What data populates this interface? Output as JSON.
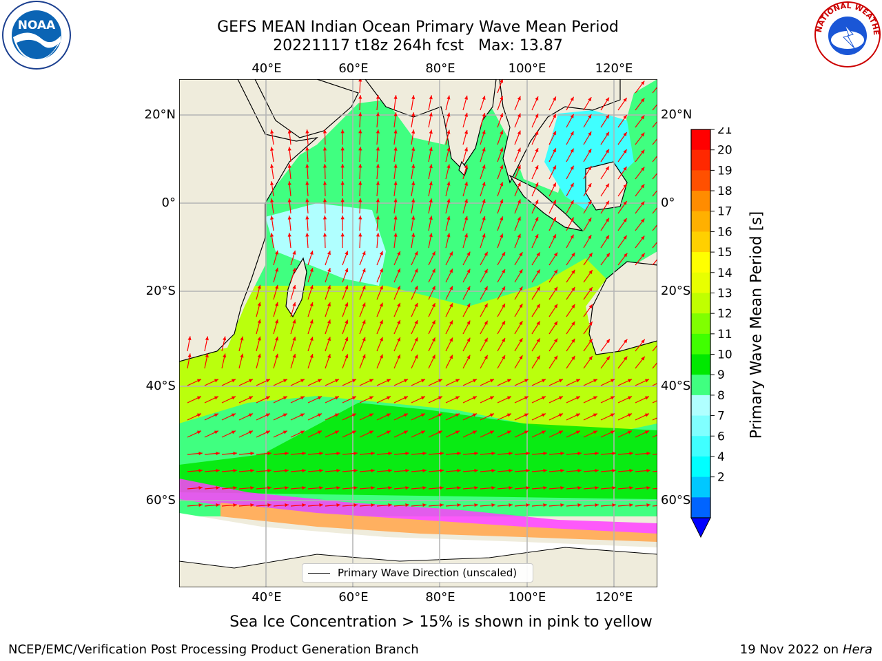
{
  "title_line1": "GEFS MEAN Indian Ocean Primary Wave Mean Period",
  "title_line2": "20221117 t18z 264h fcst   Max: 13.87",
  "logos": {
    "left": "NOAA",
    "right": "NATIONAL WEATHER SERVICE"
  },
  "map": {
    "lon_range": [
      20,
      130
    ],
    "lat_range": [
      -68,
      28
    ],
    "top_labels": [
      "40°E",
      "60°E",
      "80°E",
      "100°E",
      "120°E"
    ],
    "bottom_labels": [
      "40°E",
      "60°E",
      "80°E",
      "100°E",
      "120°E"
    ],
    "left_labels": [
      "20°N",
      "0°",
      "20°S",
      "40°S",
      "60°S"
    ],
    "right_labels": [
      "20°N",
      "0°",
      "20°S",
      "40°S",
      "60°S"
    ],
    "gridlines": true,
    "legend_text": "Primary Wave Direction (unscaled)",
    "legend_placement": "bottom-center",
    "arrow_color": "#ff0000",
    "land_color": "#efecdc",
    "ice_colors": [
      "#ff40ff",
      "#ffb060",
      "#ffff80"
    ]
  },
  "colorbar": {
    "title": "Primary Wave Mean Period [s]",
    "ticks": [
      "2",
      "4",
      "6",
      "7",
      "8",
      "9",
      "10",
      "11",
      "12",
      "13",
      "14",
      "15",
      "16",
      "17",
      "18",
      "19",
      "20",
      "21"
    ],
    "colors": [
      "#0064ff",
      "#00c8ff",
      "#00ffff",
      "#40ffff",
      "#80ffff",
      "#b0ffff",
      "#40ff80",
      "#00e800",
      "#40ff00",
      "#80ff00",
      "#c0ff00",
      "#e8ff00",
      "#ffff00",
      "#ffd000",
      "#ffb000",
      "#ff8c00",
      "#ff5000",
      "#ff2800",
      "#ff0000"
    ],
    "under_color": "#0000ff",
    "extend": "min"
  },
  "ice_note": "Sea Ice Concentration > 15% is shown in pink to yellow",
  "footer": {
    "left": "NCEP/EMC/Verification Post Processing Product Generation Branch",
    "right_prefix": "19 Nov 2022 on",
    "right_host": "Hera"
  }
}
